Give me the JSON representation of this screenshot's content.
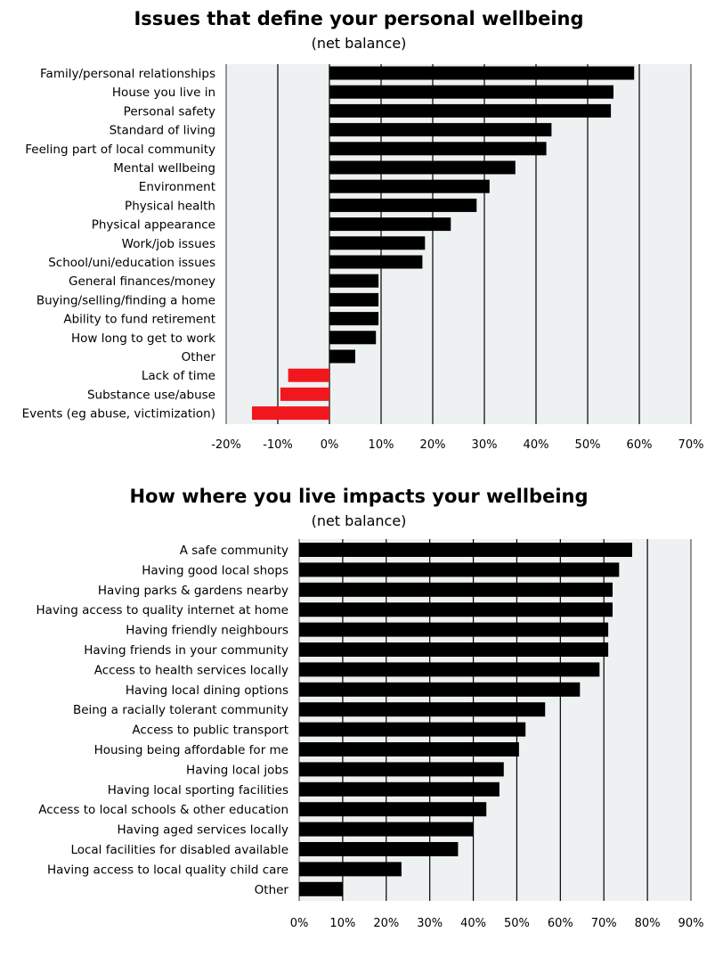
{
  "chart_data": [
    {
      "type": "bar",
      "orientation": "horizontal",
      "title": "Issues that define your personal wellbeing",
      "subtitle": "(net balance)",
      "xlim": [
        -20,
        70
      ],
      "xticks": [
        -20,
        -10,
        0,
        10,
        20,
        30,
        40,
        50,
        60,
        70
      ],
      "tick_format": "percent",
      "grid": true,
      "colors": {
        "positive": "#000000",
        "negative": "#f0171d",
        "plot_bg": "#eef1f2"
      },
      "categories": [
        "Family/personal relationships",
        "House you live in",
        "Personal safety",
        "Standard of living",
        "Feeling part of local community",
        "Mental wellbeing",
        "Environment",
        "Physical health",
        "Physical appearance",
        "Work/job issues",
        "School/uni/education issues",
        "General finances/money",
        "Buying/selling/finding a home",
        "Ability to fund retirement",
        "How long to get to work",
        "Other",
        "Lack of time",
        "Substance use/abuse",
        "Events (eg abuse, victimization)"
      ],
      "values": [
        59,
        55,
        54.5,
        43,
        42,
        36,
        31,
        28.5,
        23.5,
        18.5,
        18,
        9.5,
        9.5,
        9.5,
        9,
        5,
        -8,
        -9.5,
        -15
      ]
    },
    {
      "type": "bar",
      "orientation": "horizontal",
      "title": "How where you live impacts your wellbeing",
      "subtitle": "(net balance)",
      "xlim": [
        0,
        90
      ],
      "xticks": [
        0,
        10,
        20,
        30,
        40,
        50,
        60,
        70,
        80,
        90
      ],
      "tick_format": "percent",
      "grid": true,
      "colors": {
        "positive": "#000000",
        "plot_bg": "#eef1f2"
      },
      "categories": [
        "A safe community",
        "Having good local shops",
        "Having parks & gardens nearby",
        "Having access to quality internet at home",
        "Having friendly neighbours",
        "Having friends in your community",
        "Access to health services locally",
        "Having local dining options",
        "Being a racially tolerant community",
        "Access to public transport",
        "Housing being affordable for me",
        "Having local jobs",
        "Having local sporting facilities",
        "Access to local schools & other education",
        "Having aged services locally",
        "Local facilities for disabled available",
        "Having access to local quality child care",
        "Other"
      ],
      "values": [
        76.5,
        73.5,
        72,
        72,
        71,
        71,
        69,
        64.5,
        56.5,
        52,
        50.5,
        47,
        46,
        43,
        40,
        36.5,
        23.5,
        10
      ]
    }
  ]
}
